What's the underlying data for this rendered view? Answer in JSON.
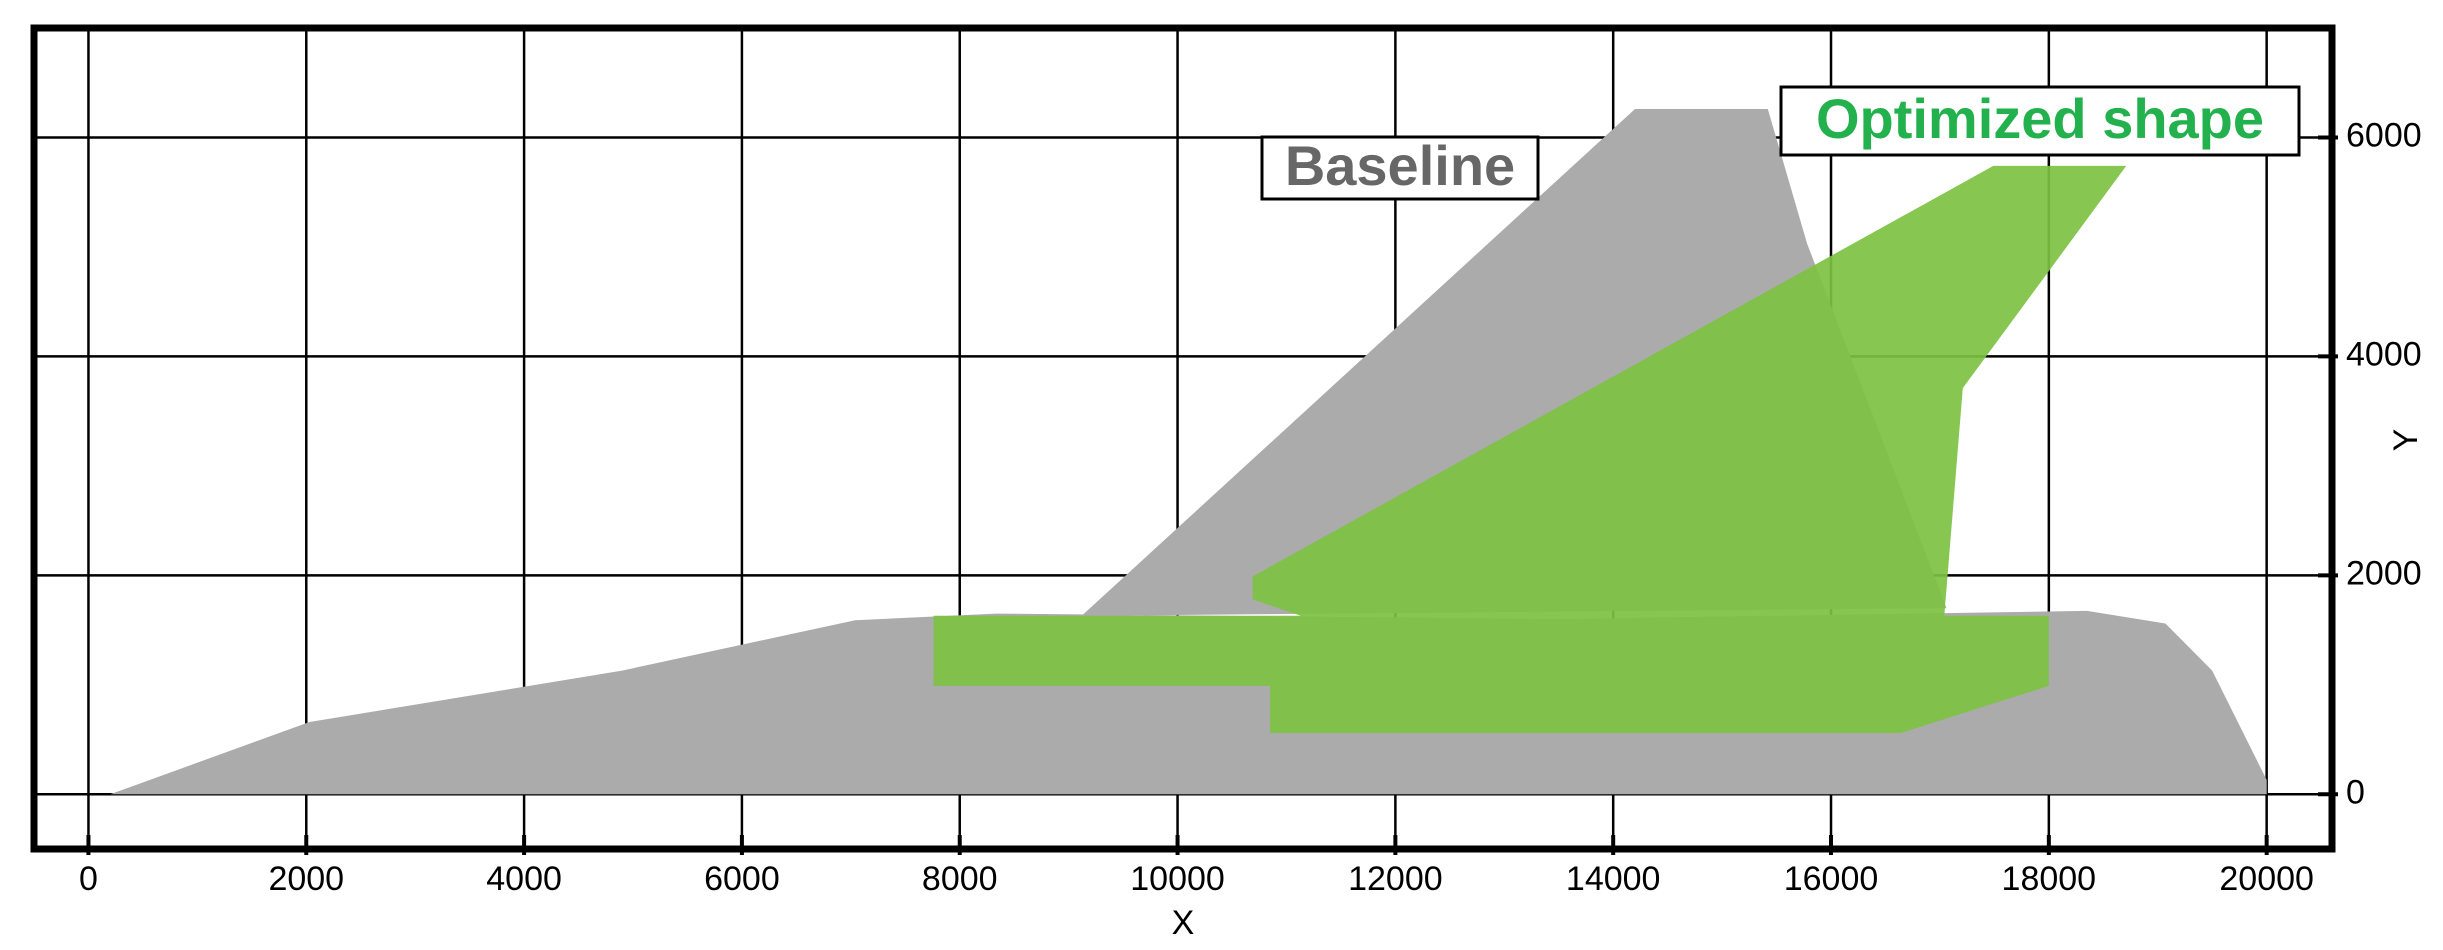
{
  "chart_data": {
    "type": "area",
    "x_label": "X",
    "y_label": "Y",
    "xlim": [
      -500,
      20600
    ],
    "ylim": [
      -500,
      7000
    ],
    "xticks": [
      0,
      2000,
      4000,
      6000,
      8000,
      10000,
      12000,
      14000,
      16000,
      18000,
      20000
    ],
    "yticks": [
      0,
      2000,
      4000,
      6000
    ],
    "grid": true,
    "series": [
      {
        "name": "Baseline",
        "color": "#ababab",
        "x": [
          200,
          2030,
          4900,
          7040,
          8330,
          13500,
          18350,
          19070,
          19500,
          20000,
          20000,
          null,
          9120,
          14200,
          15420,
          15780,
          17060
        ],
        "y": [
          0,
          660,
          1130,
          1590,
          1650,
          1600,
          1675,
          1560,
          1130,
          130,
          0,
          null,
          1630,
          6260,
          6260,
          5030,
          1700
        ]
      },
      {
        "name": "Optimized shape",
        "color": "#7dc142",
        "x": [
          10690,
          17490,
          18710,
          17210,
          17040,
          11340,
          10690,
          null,
          7760,
          18000,
          18000,
          16640,
          10850,
          10850,
          7760
        ],
        "y": [
          1990,
          5740,
          5740,
          3710,
          1630,
          1560,
          1780,
          null,
          1630,
          1630,
          990,
          560,
          560,
          990,
          990
        ]
      }
    ]
  }
}
